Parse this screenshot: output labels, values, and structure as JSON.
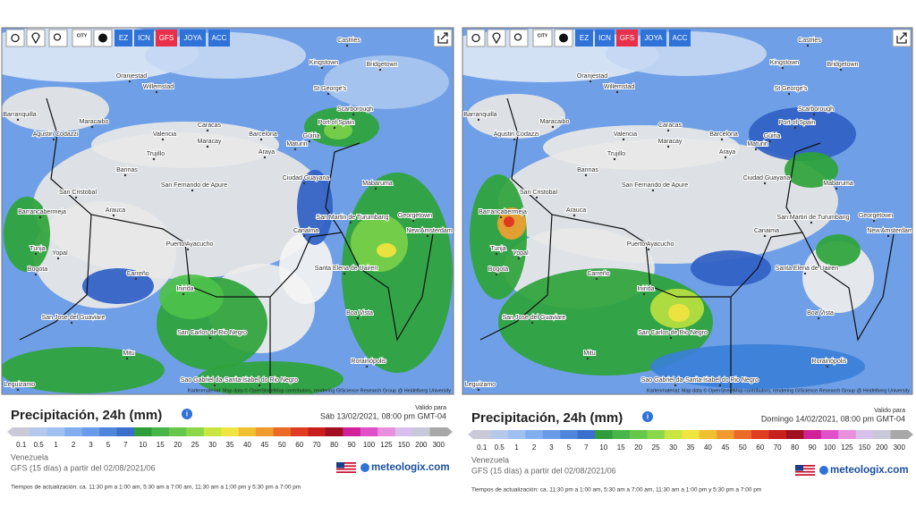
{
  "toolbar": {
    "city_icon": "CITY",
    "buttons": [
      "EZ",
      "ICN",
      "GFS",
      "JOYA",
      "ACC"
    ]
  },
  "map_labels": [
    "Castries",
    "Kingstown",
    "Bridgetown",
    "Oranjestad",
    "Willemstad",
    "St George's",
    "Barranquilla",
    "Maracaibo",
    "Scarborough",
    "Port of Spain",
    "Agustin Codazzi",
    "Valencia",
    "Caracas",
    "Barcelona",
    "Güiria",
    "Maracay",
    "Maturin",
    "Araya",
    "Barinas",
    "Trujillo",
    "San Cristobal",
    "San Fernando de Apure",
    "Ciudad Guayana",
    "Mabaruma",
    "Barrancabermeja",
    "Arauca",
    "San Martin de Turumbang",
    "Georgetown",
    "New Amsterdam",
    "Canaima",
    "Tunja",
    "Puerto Ayacucho",
    "Yopal",
    "Bogota",
    "Santa Elena de Uairen",
    "Carreño",
    "Inirida",
    "San Jose del Guaviare",
    "Boa Vista",
    "San Carlos de Rio Negro",
    "Mitu",
    "Rorainópolis",
    "Sao Gabriel da Cachoeira",
    "Santa Isabel do Rio Negro",
    "Leguizamo"
  ],
  "attribution": "Kartenmaterial: Map data © OpenStreetMap contributors, rendering GIScience Research Group @ Heidelberg University",
  "legend_scale": [
    "0.1",
    "0.5",
    "1",
    "2",
    "3",
    "5",
    "7",
    "10",
    "15",
    "20",
    "25",
    "30",
    "35",
    "40",
    "45",
    "50",
    "60",
    "70",
    "80",
    "90",
    "100",
    "125",
    "150",
    "200",
    "300"
  ],
  "panels": [
    {
      "title": "Precipitación, 24h (mm)",
      "valid_label": "Valido para",
      "valid_time": "Sáb 13/02/2021, 08:00 pm GMT-04",
      "region": "Venezuela",
      "model_run": "GFS (15 días) a partir del 02/08/2021/06",
      "brand": "meteologix.com",
      "update_times": "Tiempos de actualización: ca. 11:30 pm a 1:00 am, 5:30 am a 7:00 am, 11:30 am a 1:00 pm y 5:30 pm a 7:00 pm"
    },
    {
      "title": "Precipitación, 24h (mm)",
      "valid_label": "Valido para",
      "valid_time": "Domingo 14/02/2021, 08:00 pm GMT-04",
      "region": "Venezuela",
      "model_run": "GFS (15 días) a partir del 02/08/2021/06",
      "brand": "meteologix.com",
      "update_times": "Tiempos de actualización: ca. 11:30 pm a 1:00 am, 5:30 am a 7:00 am, 11:30 am a 1:00 pm y 5:30 pm a 7:00 pm"
    }
  ]
}
